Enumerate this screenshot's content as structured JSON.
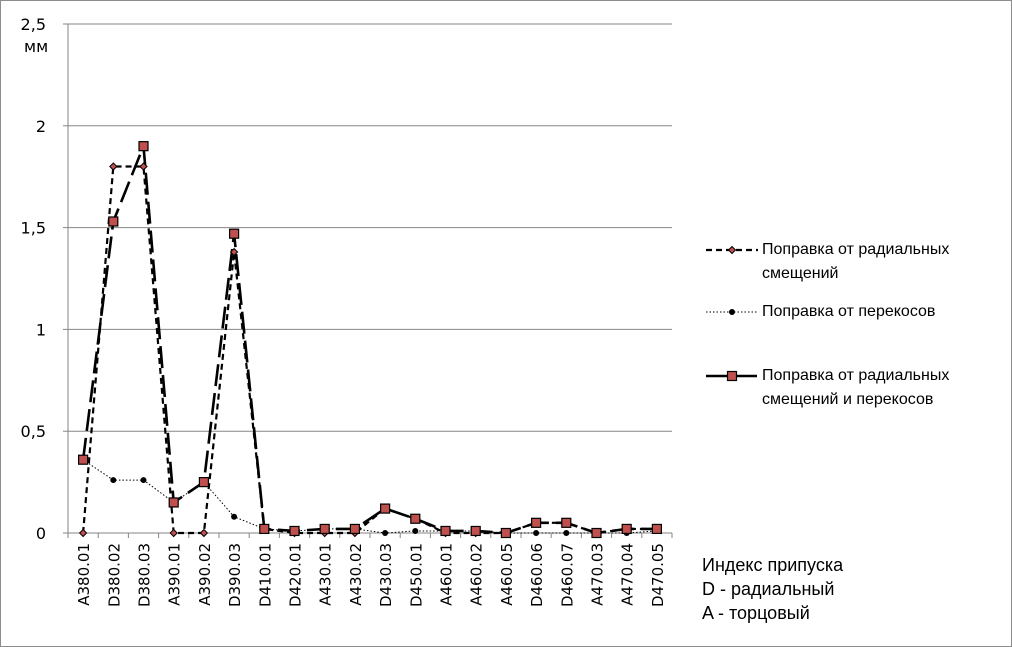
{
  "chart_data": {
    "type": "line",
    "y_unit": "мм",
    "ylim": [
      0,
      2.5
    ],
    "y_ticks": [
      "0",
      "0,5",
      "1",
      "1,5",
      "2",
      "2,5"
    ],
    "grid": true,
    "legend_position": "right",
    "categories": [
      "A380.01",
      "D380.02",
      "D380.03",
      "A390.01",
      "A390.02",
      "D390.03",
      "D410.01",
      "D420.01",
      "A430.01",
      "A430.02",
      "D430.03",
      "D450.01",
      "A460.01",
      "A460.02",
      "A460.05",
      "D460.06",
      "D460.07",
      "A470.03",
      "A470.04",
      "D470.05"
    ],
    "series": [
      {
        "name": "Поправка от радиальных\nсмещений",
        "style": "dashed-short",
        "marker": "diamond",
        "values": [
          0,
          1.8,
          1.8,
          0,
          0,
          1.38,
          0.02,
          0,
          0,
          0,
          0.12,
          0.07,
          0,
          0,
          0,
          0.05,
          0.05,
          0,
          0.02,
          0.02
        ]
      },
      {
        "name": "Поправка от перекосов",
        "style": "dotted",
        "marker": "circle",
        "values": [
          0.36,
          0.26,
          0.26,
          0.15,
          0.25,
          0.08,
          0.02,
          0.01,
          0.02,
          0.02,
          0,
          0.01,
          0.01,
          0.01,
          0,
          0,
          0,
          0,
          0,
          0.01
        ]
      },
      {
        "name": "Поправка от радиальных\nсмещений и перекосов",
        "style": "dashed-long",
        "marker": "square",
        "values": [
          0.36,
          1.53,
          1.9,
          0.15,
          0.25,
          1.47,
          0.02,
          0.01,
          0.02,
          0.02,
          0.12,
          0.07,
          0.01,
          0.01,
          0,
          0.05,
          0.05,
          0,
          0.02,
          0.02
        ]
      }
    ],
    "colors": {
      "line": "#000000",
      "marker_fill": "#c0504d",
      "grid": "#868686"
    }
  },
  "axis_note": "Индекс припуска\nD - радиальный\nA - торцовый"
}
